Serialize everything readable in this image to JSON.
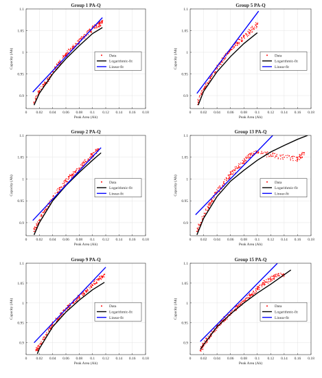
{
  "chart_data": [
    {
      "type": "scatter",
      "title": "Group 1 PA-Q",
      "xlabel": "Peak Area (Ah)",
      "ylabel": "Capacity (Ah)",
      "xlim": [
        0,
        0.18
      ],
      "ylim": [
        0.87,
        1.1
      ],
      "xticks": [
        "0",
        "0.02",
        "0.04",
        "0.06",
        "0.08",
        "0.1",
        "0.12",
        "0.14",
        "0.16",
        "0.18"
      ],
      "yticks": [
        "0.9",
        "0.95",
        "1",
        "1.05",
        "1.1"
      ],
      "grid": true,
      "legend_position": "right",
      "series": [
        {
          "name": "Data",
          "kind": "scatter",
          "color": "#ff0000",
          "x": [
            0.012,
            0.02,
            0.03,
            0.04,
            0.05,
            0.06,
            0.07,
            0.08,
            0.09,
            0.1,
            0.11,
            0.115
          ],
          "y": [
            0.885,
            0.91,
            0.93,
            0.955,
            0.975,
            0.995,
            1.01,
            1.025,
            1.04,
            1.055,
            1.065,
            1.07
          ]
        },
        {
          "name": "Logarithmic-fit",
          "kind": "line",
          "color": "#000000",
          "x": [
            0.012,
            0.02,
            0.04,
            0.06,
            0.08,
            0.1,
            0.115
          ],
          "y": [
            0.878,
            0.905,
            0.95,
            0.985,
            1.015,
            1.043,
            1.057
          ]
        },
        {
          "name": "Linear-fit",
          "kind": "line",
          "color": "#0000ff",
          "x": [
            0.01,
            0.115
          ],
          "y": [
            0.908,
            1.08
          ]
        }
      ]
    },
    {
      "type": "scatter",
      "title": "Group 5 PA-Q",
      "xlabel": "Peak Area (Ah)",
      "ylabel": "Capacity (Ah)",
      "xlim": [
        0,
        0.18
      ],
      "ylim": [
        0.87,
        1.1
      ],
      "xticks": [
        "0",
        "0.02",
        "0.04",
        "0.06",
        "0.08",
        "0.1",
        "0.12",
        "0.14",
        "0.16",
        "0.18"
      ],
      "yticks": [
        "0.9",
        "0.95",
        "1",
        "1.05",
        "1.1"
      ],
      "grid": true,
      "legend_position": "right",
      "series": [
        {
          "name": "Data",
          "kind": "scatter",
          "color": "#ff0000",
          "x": [
            0.012,
            0.02,
            0.03,
            0.04,
            0.05,
            0.06,
            0.07,
            0.08,
            0.09,
            0.1
          ],
          "y": [
            0.885,
            0.915,
            0.94,
            0.965,
            0.985,
            1.005,
            1.02,
            1.035,
            1.05,
            1.065
          ]
        },
        {
          "name": "Logarithmic-fit",
          "kind": "line",
          "color": "#000000",
          "x": [
            0.012,
            0.02,
            0.04,
            0.06,
            0.08,
            0.1
          ],
          "y": [
            0.878,
            0.91,
            0.955,
            0.99,
            1.02,
            1.045
          ]
        },
        {
          "name": "Linear-fit",
          "kind": "line",
          "color": "#0000ff",
          "x": [
            0.01,
            0.102
          ],
          "y": [
            0.905,
            1.095
          ]
        }
      ]
    },
    {
      "type": "scatter",
      "title": "Group 2 PA-Q",
      "xlabel": "Peak Area (Ah)",
      "ylabel": "Capacity (Ah)",
      "xlim": [
        0,
        0.18
      ],
      "ylim": [
        0.87,
        1.1
      ],
      "xticks": [
        "0",
        "0.02",
        "0.04",
        "0.06",
        "0.08",
        "0.1",
        "0.12",
        "0.14",
        "0.16",
        "0.18"
      ],
      "yticks": [
        "0.9",
        "0.95",
        "1",
        "1.05",
        "1.1"
      ],
      "grid": true,
      "legend_position": "right",
      "series": [
        {
          "name": "Data",
          "kind": "scatter",
          "color": "#ff0000",
          "x": [
            0.012,
            0.02,
            0.03,
            0.04,
            0.05,
            0.06,
            0.07,
            0.08,
            0.09,
            0.1,
            0.11
          ],
          "y": [
            0.88,
            0.905,
            0.93,
            0.955,
            0.975,
            0.995,
            1.01,
            1.025,
            1.04,
            1.055,
            1.068
          ]
        },
        {
          "name": "Logarithmic-fit",
          "kind": "line",
          "color": "#000000",
          "x": [
            0.012,
            0.02,
            0.04,
            0.06,
            0.08,
            0.1,
            0.113
          ],
          "y": [
            0.872,
            0.9,
            0.95,
            0.985,
            1.015,
            1.043,
            1.06
          ]
        },
        {
          "name": "Linear-fit",
          "kind": "line",
          "color": "#0000ff",
          "x": [
            0.01,
            0.113
          ],
          "y": [
            0.905,
            1.072
          ]
        }
      ]
    },
    {
      "type": "scatter",
      "title": "Group 13 PA-Q",
      "xlabel": "Peak Area (Ah)",
      "ylabel": "Capacity (Ah)",
      "xlim": [
        0,
        0.18
      ],
      "ylim": [
        0.87,
        1.1
      ],
      "xticks": [
        "0",
        "0.02",
        "0.04",
        "0.06",
        "0.08",
        "0.1",
        "0.12",
        "0.14",
        "0.16",
        "0.18"
      ],
      "yticks": [
        "0.9",
        "0.95",
        "1",
        "1.05",
        "1.1"
      ],
      "grid": true,
      "legend_position": "right",
      "series": [
        {
          "name": "Data",
          "kind": "scatter",
          "color": "#ff0000",
          "x": [
            0.01,
            0.02,
            0.03,
            0.04,
            0.05,
            0.06,
            0.07,
            0.08,
            0.09,
            0.1,
            0.12,
            0.14,
            0.16,
            0.17
          ],
          "y": [
            0.88,
            0.915,
            0.945,
            0.97,
            0.99,
            1.01,
            1.025,
            1.04,
            1.055,
            1.06,
            1.055,
            1.05,
            1.045,
            1.06
          ]
        },
        {
          "name": "Logarithmic-fit",
          "kind": "line",
          "color": "#000000",
          "x": [
            0.01,
            0.02,
            0.04,
            0.06,
            0.08,
            0.1,
            0.12,
            0.14,
            0.16,
            0.175
          ],
          "y": [
            0.872,
            0.91,
            0.96,
            0.995,
            1.02,
            1.043,
            1.062,
            1.077,
            1.091,
            1.1
          ]
        },
        {
          "name": "Linear-fit",
          "kind": "line",
          "color": "#0000ff",
          "x": [
            0.008,
            0.123
          ],
          "y": [
            0.918,
            1.1
          ]
        }
      ]
    },
    {
      "type": "scatter",
      "title": "Group 9 PA-Q",
      "xlabel": "Peak Area (Ah)",
      "ylabel": "Capacity (Ah)",
      "xlim": [
        0,
        0.18
      ],
      "ylim": [
        0.87,
        1.1
      ],
      "xticks": [
        "0",
        "0.02",
        "0.04",
        "0.06",
        "0.08",
        "0.1",
        "0.12",
        "0.14",
        "0.16",
        "0.18"
      ],
      "yticks": [
        "0.9",
        "0.95",
        "1",
        "1.05",
        "1.1"
      ],
      "grid": true,
      "legend_position": "right",
      "series": [
        {
          "name": "Data",
          "kind": "scatter",
          "color": "#ff0000",
          "x": [
            0.015,
            0.02,
            0.03,
            0.04,
            0.05,
            0.06,
            0.07,
            0.08,
            0.09,
            0.1,
            0.11,
            0.118
          ],
          "y": [
            0.88,
            0.89,
            0.92,
            0.945,
            0.965,
            0.985,
            1.0,
            1.015,
            1.03,
            1.045,
            1.06,
            1.072
          ]
        },
        {
          "name": "Logarithmic-fit",
          "kind": "line",
          "color": "#000000",
          "x": [
            0.017,
            0.02,
            0.04,
            0.06,
            0.08,
            0.1,
            0.118
          ],
          "y": [
            0.872,
            0.885,
            0.94,
            0.977,
            1.007,
            1.033,
            1.052
          ]
        },
        {
          "name": "Linear-fit",
          "kind": "line",
          "color": "#0000ff",
          "x": [
            0.012,
            0.12
          ],
          "y": [
            0.9,
            1.09
          ]
        }
      ]
    },
    {
      "type": "scatter",
      "title": "Group 15 PA-Q",
      "xlabel": "Peak Area (Ah)",
      "ylabel": "Capacity (Ah)",
      "xlim": [
        0,
        0.18
      ],
      "ylim": [
        0.87,
        1.1
      ],
      "xticks": [
        "0",
        "0.02",
        "0.04",
        "0.06",
        "0.08",
        "0.1",
        "0.12",
        "0.14",
        "0.16",
        "0.18"
      ],
      "yticks": [
        "0.9",
        "0.95",
        "1",
        "1.05",
        "1.1"
      ],
      "grid": true,
      "legend_position": "right",
      "series": [
        {
          "name": "Data",
          "kind": "scatter",
          "color": "#ff0000",
          "x": [
            0.015,
            0.02,
            0.03,
            0.04,
            0.05,
            0.06,
            0.07,
            0.08,
            0.09,
            0.1,
            0.11,
            0.12,
            0.13,
            0.14
          ],
          "y": [
            0.88,
            0.895,
            0.92,
            0.94,
            0.958,
            0.975,
            0.99,
            1.005,
            1.02,
            1.035,
            1.05,
            1.06,
            1.07,
            1.07
          ]
        },
        {
          "name": "Logarithmic-fit",
          "kind": "line",
          "color": "#000000",
          "x": [
            0.015,
            0.02,
            0.04,
            0.06,
            0.08,
            0.1,
            0.12,
            0.15
          ],
          "y": [
            0.883,
            0.895,
            0.94,
            0.972,
            1.0,
            1.025,
            1.047,
            1.083
          ]
        },
        {
          "name": "Linear-fit",
          "kind": "line",
          "color": "#0000ff",
          "x": [
            0.015,
            0.13
          ],
          "y": [
            0.903,
            1.1
          ]
        }
      ]
    }
  ]
}
